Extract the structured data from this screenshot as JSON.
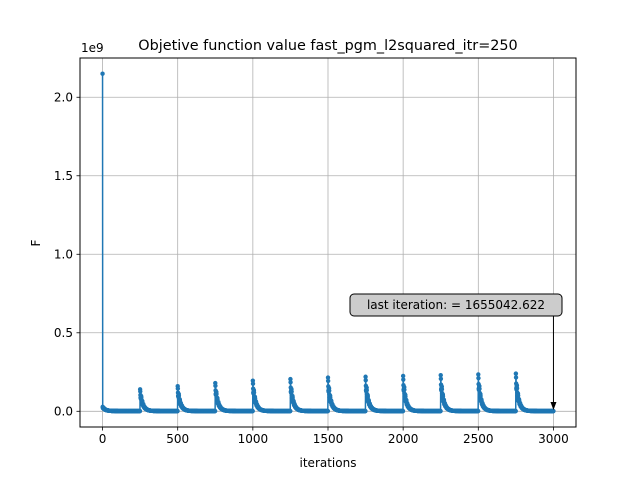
{
  "chart_data": {
    "type": "line",
    "title": "Objetive function value fast_pgm_l2squared_itr=250",
    "xlabel": "iterations",
    "ylabel": "F",
    "y_multiplier_label": "1e9",
    "xlim": [
      -150,
      3150
    ],
    "ylim": [
      -0.1,
      2.25
    ],
    "x_ticks": [
      0,
      500,
      1000,
      1500,
      2000,
      2500,
      3000
    ],
    "x_tick_labels": [
      "0",
      "500",
      "1000",
      "1500",
      "2000",
      "2500",
      "3000"
    ],
    "y_ticks": [
      0.0,
      0.5,
      1.0,
      1.5,
      2.0
    ],
    "y_tick_labels": [
      "0.0",
      "0.5",
      "1.0",
      "1.5",
      "2.0"
    ],
    "grid": true,
    "series_color": "#1f77b4",
    "series": [
      {
        "description_of_data": "objective value per iteration (units of 1e9); a restart occurs every 250 iterations",
        "initial_spike": {
          "x": 0,
          "y": 2.15
        },
        "restart_peaks": [
          {
            "x": 250,
            "y": 0.14
          },
          {
            "x": 500,
            "y": 0.16
          },
          {
            "x": 750,
            "y": 0.18
          },
          {
            "x": 1000,
            "y": 0.195
          },
          {
            "x": 1250,
            "y": 0.205
          },
          {
            "x": 1500,
            "y": 0.215
          },
          {
            "x": 1750,
            "y": 0.22
          },
          {
            "x": 2000,
            "y": 0.225
          },
          {
            "x": 2250,
            "y": 0.23
          },
          {
            "x": 2500,
            "y": 0.235
          },
          {
            "x": 2750,
            "y": 0.24
          }
        ],
        "final_point": {
          "x": 3000,
          "y": 0.0016550426
        }
      }
    ],
    "annotation": {
      "text": "last iteration: = 1655042.622",
      "target": {
        "x": 3000,
        "y": 0.0016550426
      }
    }
  }
}
